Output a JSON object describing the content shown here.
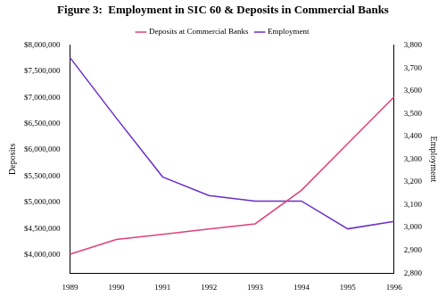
{
  "chart_data": {
    "type": "line",
    "title": "Figure 3:  Employment in SIC 60 & Deposits in Commercial Banks",
    "ylabel": "Deposits",
    "y2label": "Employment",
    "categories": [
      "1989",
      "1990",
      "1991",
      "1992",
      "1993",
      "1994",
      "1995",
      "1996"
    ],
    "series": [
      {
        "name": "Deposits at Commercial Banks",
        "color": "#e0407a",
        "values": [
          4010000,
          4290000,
          4390000,
          4490000,
          4590000,
          5230000,
          6120000,
          7010000
        ]
      },
      {
        "name": "Employment",
        "color": "#6a2fc8",
        "axis": "y2",
        "values": [
          3745,
          3480,
          3222,
          3140,
          3116,
          3116,
          2994,
          3027
        ]
      }
    ],
    "ylim": [
      3650000,
      8000000
    ],
    "yticks": [
      {
        "value": 4000000,
        "label": "$4,000,000"
      },
      {
        "value": 4500000,
        "label": "$4,500,000"
      },
      {
        "value": 5000000,
        "label": "$5,000,000"
      },
      {
        "value": 5500000,
        "label": "$5,500,000"
      },
      {
        "value": 6000000,
        "label": "$6,000,000"
      },
      {
        "value": 6500000,
        "label": "$6,500,000"
      },
      {
        "value": 7000000,
        "label": "$7,000,000"
      },
      {
        "value": 7500000,
        "label": "$7,500,000"
      },
      {
        "value": 8000000,
        "label": "$8,000,000"
      }
    ],
    "y2lim": [
      2800,
      3800
    ],
    "y2ticks": [
      {
        "value": 2800,
        "label": "2,800"
      },
      {
        "value": 2900,
        "label": "2,900"
      },
      {
        "value": 3000,
        "label": "3,000"
      },
      {
        "value": 3100,
        "label": "3,100"
      },
      {
        "value": 3200,
        "label": "3,200"
      },
      {
        "value": 3300,
        "label": "3,300"
      },
      {
        "value": 3400,
        "label": "3,400"
      },
      {
        "value": 3500,
        "label": "3,500"
      },
      {
        "value": 3600,
        "label": "3,600"
      },
      {
        "value": 3700,
        "label": "3,700"
      },
      {
        "value": 3800,
        "label": "3,800"
      }
    ],
    "grid": false,
    "legend": "top"
  }
}
